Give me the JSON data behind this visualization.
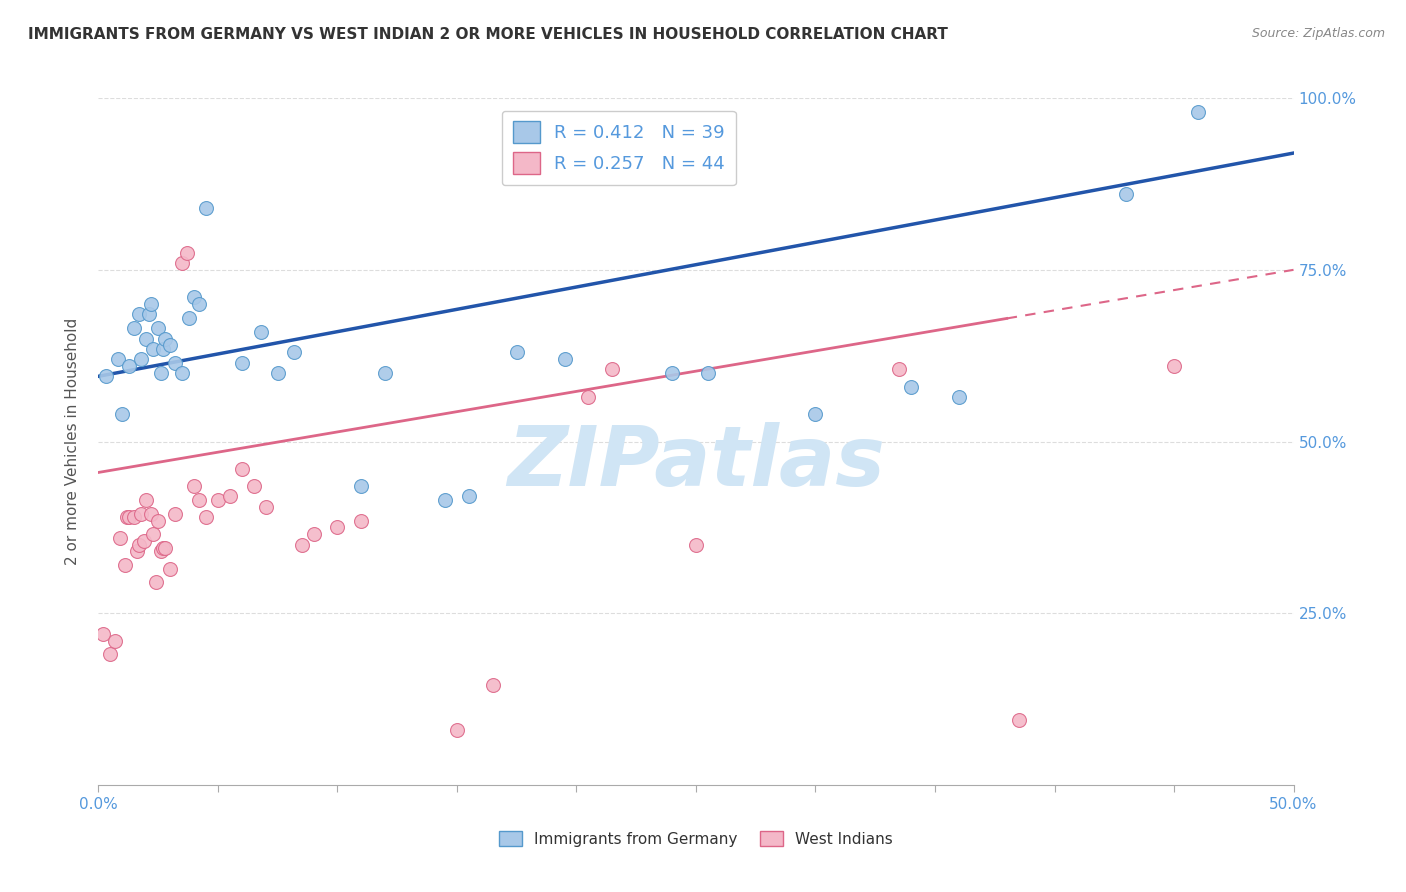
{
  "title": "IMMIGRANTS FROM GERMANY VS WEST INDIAN 2 OR MORE VEHICLES IN HOUSEHOLD CORRELATION CHART",
  "source": "Source: ZipAtlas.com",
  "ylabel": "2 or more Vehicles in Household",
  "legend_r": [
    0.412,
    0.257
  ],
  "legend_n": [
    39,
    44
  ],
  "blue_color": "#a8c8e8",
  "pink_color": "#f4b8c8",
  "blue_edge_color": "#5599cc",
  "pink_edge_color": "#dd6688",
  "blue_line_color": "#2255aa",
  "pink_line_color": "#dd6688",
  "axis_label_color": "#5599dd",
  "title_color": "#333333",
  "xlim": [
    0.0,
    0.5
  ],
  "ylim": [
    0.0,
    1.0
  ],
  "xticks": [
    0.0,
    0.05,
    0.1,
    0.15,
    0.2,
    0.25,
    0.3,
    0.35,
    0.4,
    0.45,
    0.5
  ],
  "yticks": [
    0.0,
    0.25,
    0.5,
    0.75,
    1.0
  ],
  "xtick_labels_show": [
    true,
    false,
    false,
    false,
    false,
    false,
    false,
    false,
    false,
    false,
    true
  ],
  "ytick_labels": [
    "",
    "25.0%",
    "50.0%",
    "75.0%",
    "100.0%"
  ],
  "blue_x": [
    0.003,
    0.008,
    0.01,
    0.013,
    0.015,
    0.017,
    0.018,
    0.02,
    0.021,
    0.022,
    0.023,
    0.025,
    0.026,
    0.027,
    0.028,
    0.03,
    0.032,
    0.035,
    0.038,
    0.04,
    0.042,
    0.045,
    0.06,
    0.068,
    0.075,
    0.082,
    0.11,
    0.12,
    0.145,
    0.155,
    0.175,
    0.195,
    0.24,
    0.255,
    0.3,
    0.36,
    0.43,
    0.46,
    0.34
  ],
  "blue_y": [
    0.595,
    0.62,
    0.54,
    0.61,
    0.665,
    0.685,
    0.62,
    0.65,
    0.685,
    0.7,
    0.635,
    0.665,
    0.6,
    0.635,
    0.65,
    0.64,
    0.615,
    0.6,
    0.68,
    0.71,
    0.7,
    0.84,
    0.615,
    0.66,
    0.6,
    0.63,
    0.435,
    0.6,
    0.415,
    0.42,
    0.63,
    0.62,
    0.6,
    0.6,
    0.54,
    0.565,
    0.86,
    0.98,
    0.58
  ],
  "pink_x": [
    0.002,
    0.005,
    0.007,
    0.009,
    0.011,
    0.012,
    0.013,
    0.015,
    0.016,
    0.017,
    0.018,
    0.019,
    0.02,
    0.022,
    0.023,
    0.024,
    0.025,
    0.026,
    0.027,
    0.028,
    0.03,
    0.032,
    0.035,
    0.037,
    0.04,
    0.042,
    0.045,
    0.05,
    0.055,
    0.06,
    0.065,
    0.07,
    0.085,
    0.09,
    0.1,
    0.11,
    0.15,
    0.165,
    0.205,
    0.215,
    0.25,
    0.335,
    0.385,
    0.45
  ],
  "pink_y": [
    0.22,
    0.19,
    0.21,
    0.36,
    0.32,
    0.39,
    0.39,
    0.39,
    0.34,
    0.35,
    0.395,
    0.355,
    0.415,
    0.395,
    0.365,
    0.295,
    0.385,
    0.34,
    0.345,
    0.345,
    0.315,
    0.395,
    0.76,
    0.775,
    0.435,
    0.415,
    0.39,
    0.415,
    0.42,
    0.46,
    0.435,
    0.405,
    0.35,
    0.365,
    0.375,
    0.385,
    0.08,
    0.145,
    0.565,
    0.605,
    0.35,
    0.605,
    0.095,
    0.61
  ],
  "blue_line_y0": 0.595,
  "blue_line_y1": 0.92,
  "pink_line_y0": 0.455,
  "pink_line_y1": 0.75,
  "watermark": "ZIPatlas",
  "watermark_color": "#d0e5f5",
  "background_color": "#ffffff",
  "grid_color": "#dddddd"
}
